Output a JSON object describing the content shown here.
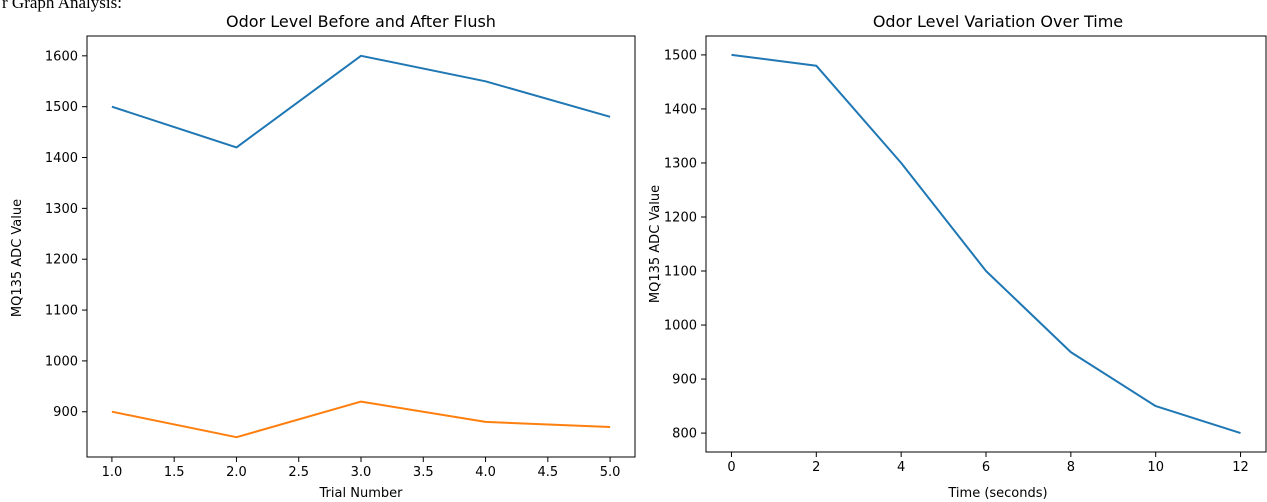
{
  "caption": "r Graph Analysis:",
  "chart_data": [
    {
      "type": "line",
      "title": "Odor Level Before and After Flush",
      "xlabel": "Trial Number",
      "ylabel": "MQ135 ADC Value",
      "xlim": [
        0.8,
        5.2
      ],
      "ylim": [
        811,
        1639
      ],
      "xticks": [
        1.0,
        1.5,
        2.0,
        2.5,
        3.0,
        3.5,
        4.0,
        4.5,
        5.0
      ],
      "xtick_labels": [
        "1.0",
        "1.5",
        "2.0",
        "2.5",
        "3.0",
        "3.5",
        "4.0",
        "4.5",
        "5.0"
      ],
      "yticks": [
        900,
        1000,
        1100,
        1200,
        1300,
        1400,
        1500,
        1600
      ],
      "ytick_labels": [
        "900",
        "1000",
        "1100",
        "1200",
        "1300",
        "1400",
        "1500",
        "1600"
      ],
      "grid": false,
      "x": [
        1,
        2,
        3,
        4,
        5
      ],
      "series": [
        {
          "values": [
            1500,
            1420,
            1600,
            1550,
            1480
          ],
          "color": "#1f77b4"
        },
        {
          "values": [
            900,
            850,
            920,
            880,
            870
          ],
          "color": "#ff7f0e"
        }
      ]
    },
    {
      "type": "line",
      "title": "Odor Level Variation Over Time",
      "xlabel": "Time (seconds)",
      "ylabel": "MQ135 ADC Value",
      "xlim": [
        -0.6,
        12.6
      ],
      "ylim": [
        765,
        1535
      ],
      "xticks": [
        0,
        2,
        4,
        6,
        8,
        10,
        12
      ],
      "xtick_labels": [
        "0",
        "2",
        "4",
        "6",
        "8",
        "10",
        "12"
      ],
      "yticks": [
        800,
        900,
        1000,
        1100,
        1200,
        1300,
        1400,
        1500
      ],
      "ytick_labels": [
        "800",
        "900",
        "1000",
        "1100",
        "1200",
        "1300",
        "1400",
        "1500"
      ],
      "grid": false,
      "x": [
        0,
        2,
        4,
        6,
        8,
        10,
        12
      ],
      "series": [
        {
          "values": [
            1500,
            1480,
            1300,
            1100,
            950,
            850,
            800
          ],
          "color": "#1f77b4"
        }
      ]
    }
  ]
}
